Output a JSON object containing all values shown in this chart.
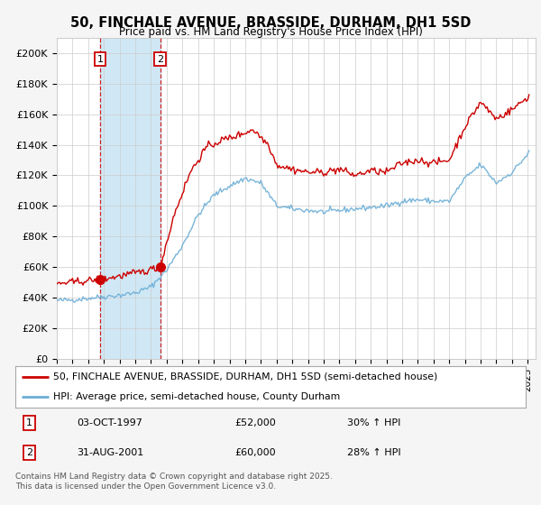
{
  "title": "50, FINCHALE AVENUE, BRASSIDE, DURHAM, DH1 5SD",
  "subtitle": "Price paid vs. HM Land Registry's House Price Index (HPI)",
  "legend_line1": "50, FINCHALE AVENUE, BRASSIDE, DURHAM, DH1 5SD (semi-detached house)",
  "legend_line2": "HPI: Average price, semi-detached house, County Durham",
  "purchase1_date": "03-OCT-1997",
  "purchase1_price": 52000,
  "purchase1_hpi": "30% ↑ HPI",
  "purchase2_date": "31-AUG-2001",
  "purchase2_price": 60000,
  "purchase2_hpi": "28% ↑ HPI",
  "footer": "Contains HM Land Registry data © Crown copyright and database right 2025.\nThis data is licensed under the Open Government Licence v3.0.",
  "ylim": [
    0,
    210000
  ],
  "yticks": [
    0,
    20000,
    40000,
    60000,
    80000,
    100000,
    120000,
    140000,
    160000,
    180000,
    200000
  ],
  "ytick_labels": [
    "£0",
    "£20K",
    "£40K",
    "£60K",
    "£80K",
    "£100K",
    "£120K",
    "£140K",
    "£160K",
    "£180K",
    "£200K"
  ],
  "hpi_color": "#6baed6",
  "price_color": "#cc0000",
  "shade_color": "#d0e8f5",
  "background_color": "#f5f5f5",
  "plot_bg_color": "#ffffff",
  "grid_color": "#cccccc",
  "vline_color": "#cc0000",
  "purchase1_year": 1997.75,
  "purchase2_year": 2001.583,
  "xlim_left": 1995.0,
  "xlim_right": 2025.5,
  "hpi_control_years": [
    1995.0,
    1996.0,
    1997.0,
    1998.0,
    1999.0,
    2000.0,
    2001.0,
    2002.0,
    2003.0,
    2004.0,
    2005.0,
    2006.0,
    2007.0,
    2008.0,
    2009.0,
    2010.0,
    2011.0,
    2012.0,
    2013.0,
    2014.0,
    2015.0,
    2016.0,
    2017.0,
    2018.0,
    2019.0,
    2020.0,
    2021.0,
    2022.0,
    2023.0,
    2024.0,
    2025.1
  ],
  "hpi_control_vals": [
    38000,
    38500,
    39500,
    40500,
    41500,
    43000,
    47000,
    58000,
    74000,
    94000,
    107000,
    113000,
    118000,
    115000,
    100000,
    98000,
    97000,
    96000,
    97000,
    98000,
    99000,
    100000,
    103000,
    104000,
    103000,
    103000,
    118000,
    127000,
    115000,
    122000,
    135000
  ],
  "price_control_years": [
    1995.0,
    1996.0,
    1997.0,
    1997.75,
    1998.5,
    1999.5,
    2000.5,
    2001.583,
    2002.5,
    2003.5,
    2004.5,
    2005.5,
    2006.5,
    2007.5,
    2008.5,
    2009.0,
    2010.0,
    2011.0,
    2012.0,
    2013.0,
    2014.0,
    2015.0,
    2016.0,
    2017.0,
    2018.0,
    2019.0,
    2020.0,
    2021.0,
    2022.0,
    2023.0,
    2024.0,
    2025.1
  ],
  "price_control_vals": [
    49000,
    50000,
    51000,
    52000,
    53000,
    55000,
    57000,
    60000,
    95000,
    122000,
    138000,
    143000,
    146000,
    150000,
    140000,
    127000,
    124000,
    122000,
    122000,
    124000,
    120000,
    123000,
    122000,
    128000,
    130000,
    128000,
    130000,
    152000,
    168000,
    157000,
    163000,
    172000
  ]
}
